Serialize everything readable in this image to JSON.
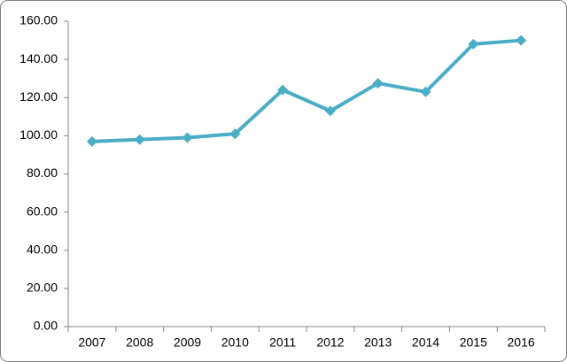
{
  "chart_data": {
    "type": "line",
    "categories": [
      "2007",
      "2008",
      "2009",
      "2010",
      "2011",
      "2012",
      "2013",
      "2014",
      "2015",
      "2016"
    ],
    "series": [
      {
        "color": "#4bacc6",
        "values": [
          97,
          98,
          99,
          101,
          124,
          113,
          127.5,
          123,
          148,
          150
        ]
      }
    ],
    "ylim": [
      0,
      160
    ],
    "yticks": [
      {
        "value": 0,
        "label": "0.00"
      },
      {
        "value": 20,
        "label": "20.00"
      },
      {
        "value": 40,
        "label": "40.00"
      },
      {
        "value": 60,
        "label": "60.00"
      },
      {
        "value": 80,
        "label": "80.00"
      },
      {
        "value": 100,
        "label": "100.00"
      },
      {
        "value": 120,
        "label": "120.00"
      },
      {
        "value": 140,
        "label": "140.00"
      },
      {
        "value": 160,
        "label": "160.00"
      }
    ],
    "grid": false,
    "marker": "diamond"
  }
}
